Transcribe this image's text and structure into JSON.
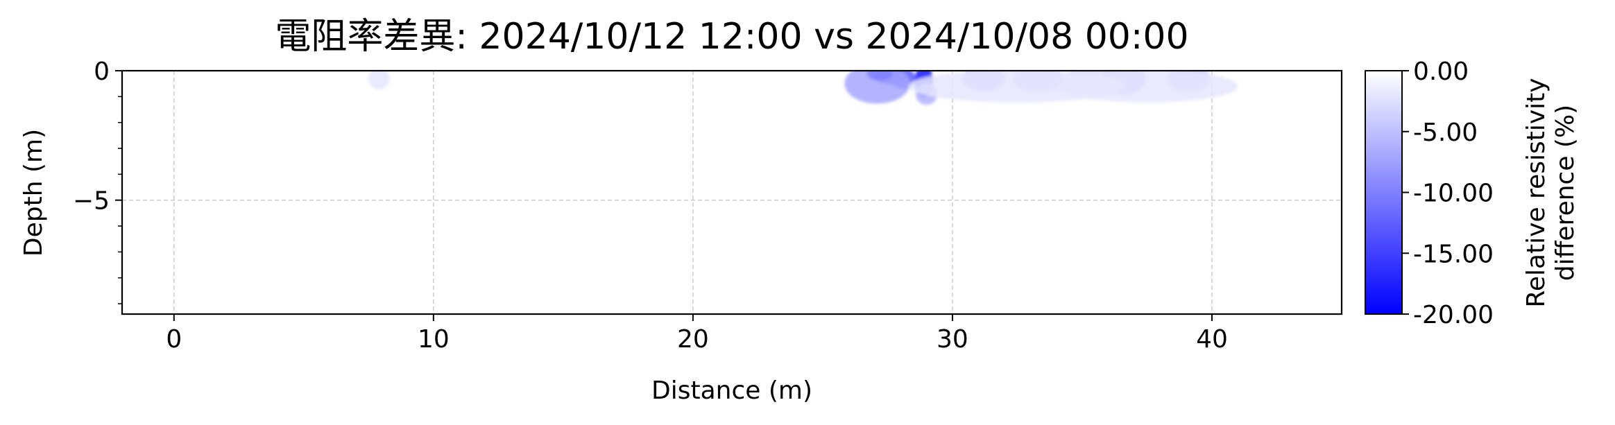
{
  "chart_data": {
    "type": "heatmap",
    "title": "電阻率差異: 2024/10/12 12:00 vs 2024/10/08 00:00",
    "xlabel": "Distance (m)",
    "ylabel": "Depth (m)",
    "xlim": [
      -2,
      45
    ],
    "ylim": [
      -9.4,
      0
    ],
    "x_ticks": [
      0,
      10,
      20,
      30,
      40
    ],
    "x_tick_labels": [
      "0",
      "10",
      "20",
      "30",
      "40"
    ],
    "y_ticks": [
      0,
      -5
    ],
    "y_tick_labels": [
      "0",
      "−5"
    ],
    "grid": true,
    "colorbar": {
      "label": "Relative resistivity difference (%)",
      "label_lines": [
        "Relative resistivity",
        "difference (%)"
      ],
      "range": [
        -20,
        0
      ],
      "ticks": [
        0,
        -5,
        -10,
        -15,
        -20
      ],
      "tick_labels": [
        "0.00",
        "-5.00",
        "-10.00",
        "-15.00",
        "-20.00"
      ],
      "color_min": "#0000ff",
      "color_max": "#ffffff"
    },
    "anomalies": [
      {
        "x": 27.6,
        "depth": -0.2,
        "sx": 0.45,
        "sy": 0.22,
        "value": -16
      },
      {
        "x": 28.1,
        "depth": -0.3,
        "sx": 0.35,
        "sy": 0.28,
        "value": -13
      },
      {
        "x": 28.9,
        "depth": -0.4,
        "sx": 0.25,
        "sy": 0.45,
        "value": -18
      },
      {
        "x": 27.1,
        "depth": -0.5,
        "sx": 0.9,
        "sy": 0.55,
        "value": -7
      },
      {
        "x": 29.0,
        "depth": -0.9,
        "sx": 0.3,
        "sy": 0.3,
        "value": -6
      },
      {
        "x": 27.2,
        "depth": -0.1,
        "sx": 0.35,
        "sy": 0.2,
        "value": -10
      },
      {
        "x": 31.2,
        "depth": -0.3,
        "sx": 0.6,
        "sy": 0.35,
        "value": -5
      },
      {
        "x": 33.3,
        "depth": -0.3,
        "sx": 0.7,
        "sy": 0.4,
        "value": -4
      },
      {
        "x": 35.4,
        "depth": -0.35,
        "sx": 0.8,
        "sy": 0.4,
        "value": -3
      },
      {
        "x": 36.6,
        "depth": -0.3,
        "sx": 0.6,
        "sy": 0.45,
        "value": -5
      },
      {
        "x": 39.1,
        "depth": -0.3,
        "sx": 0.6,
        "sy": 0.4,
        "value": -4
      },
      {
        "x": 32.5,
        "depth": -0.6,
        "sx": 3.0,
        "sy": 0.45,
        "value": -2
      },
      {
        "x": 37.5,
        "depth": -0.6,
        "sx": 2.5,
        "sy": 0.45,
        "value": -2
      },
      {
        "x": 7.9,
        "depth": -0.3,
        "sx": 0.3,
        "sy": 0.3,
        "value": -2
      }
    ]
  }
}
